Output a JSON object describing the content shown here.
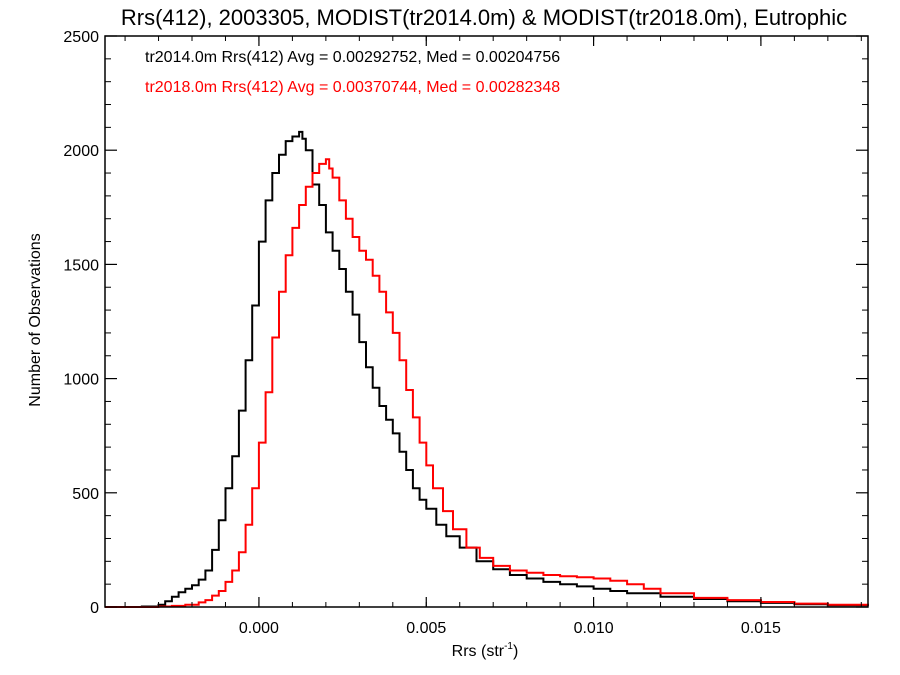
{
  "chart_data": {
    "type": "line",
    "style": "step-histogram",
    "title": "Rrs(412), 2003305, MODIST(tr2014.0m) & MODIST(tr2018.0m), Eutrophic",
    "xlabel_main": "Rrs (str",
    "xlabel_sup": "-1",
    "xlabel_close": ")",
    "ylabel": "Number of Observations",
    "xlim": [
      -0.0046,
      0.0182
    ],
    "ylim": [
      0,
      2500
    ],
    "xticks": [
      0.0,
      0.005,
      0.01,
      0.015
    ],
    "xtick_labels": [
      "0.000",
      "0.005",
      "0.010",
      "0.015"
    ],
    "yticks": [
      0,
      500,
      1000,
      1500,
      2000,
      2500
    ],
    "ytick_labels": [
      "0",
      "500",
      "1000",
      "1500",
      "2000",
      "2500"
    ],
    "grid": false,
    "legend_position": "top-left",
    "legend": [
      "tr2014.0m Rrs(412) Avg = 0.00292752, Med = 0.00204756",
      "tr2018.0m Rrs(412) Avg = 0.00370744, Med = 0.00282348"
    ],
    "series": [
      {
        "color": "#000000",
        "x": [
          -0.0046,
          -0.004,
          -0.0035,
          -0.003,
          -0.0028,
          -0.0026,
          -0.0024,
          -0.0022,
          -0.002,
          -0.0018,
          -0.0016,
          -0.0014,
          -0.0012,
          -0.001,
          -0.0008,
          -0.0006,
          -0.0004,
          -0.0002,
          0.0,
          0.0002,
          0.0004,
          0.0006,
          0.0008,
          0.001,
          0.0012,
          0.0013,
          0.0014,
          0.0016,
          0.0018,
          0.002,
          0.0022,
          0.0024,
          0.0026,
          0.0028,
          0.003,
          0.0032,
          0.0034,
          0.0036,
          0.0038,
          0.004,
          0.0042,
          0.0044,
          0.0046,
          0.0048,
          0.005,
          0.0053,
          0.0056,
          0.006,
          0.0065,
          0.007,
          0.0075,
          0.008,
          0.0085,
          0.009,
          0.0095,
          0.01,
          0.0105,
          0.011,
          0.012,
          0.013,
          0.014,
          0.015,
          0.016,
          0.017,
          0.0182
        ],
        "y": [
          0,
          0,
          2,
          10,
          25,
          45,
          65,
          80,
          95,
          120,
          160,
          250,
          380,
          520,
          660,
          860,
          1080,
          1320,
          1600,
          1780,
          1900,
          1980,
          2040,
          2060,
          2080,
          2050,
          2000,
          1850,
          1760,
          1640,
          1560,
          1480,
          1380,
          1280,
          1160,
          1050,
          960,
          880,
          820,
          760,
          680,
          600,
          520,
          470,
          430,
          360,
          310,
          260,
          200,
          165,
          140,
          125,
          110,
          100,
          90,
          80,
          70,
          60,
          45,
          35,
          25,
          18,
          12,
          8,
          5
        ]
      },
      {
        "color": "#ff0000",
        "x": [
          -0.0046,
          -0.0035,
          -0.003,
          -0.0026,
          -0.0022,
          -0.0018,
          -0.0016,
          -0.0014,
          -0.0012,
          -0.001,
          -0.0008,
          -0.0006,
          -0.0004,
          -0.0002,
          0.0,
          0.0002,
          0.0004,
          0.0006,
          0.0008,
          0.001,
          0.0012,
          0.0014,
          0.0016,
          0.0018,
          0.002,
          0.0021,
          0.0022,
          0.0024,
          0.0026,
          0.0028,
          0.003,
          0.0032,
          0.0034,
          0.0036,
          0.0038,
          0.004,
          0.0042,
          0.0044,
          0.0046,
          0.0048,
          0.005,
          0.0052,
          0.0055,
          0.0058,
          0.0062,
          0.0066,
          0.007,
          0.0075,
          0.008,
          0.0085,
          0.009,
          0.0095,
          0.01,
          0.0105,
          0.011,
          0.0115,
          0.012,
          0.013,
          0.014,
          0.015,
          0.016,
          0.017,
          0.0182
        ],
        "y": [
          0,
          0,
          2,
          5,
          10,
          20,
          30,
          50,
          70,
          110,
          160,
          240,
          360,
          520,
          720,
          940,
          1180,
          1380,
          1540,
          1660,
          1760,
          1840,
          1900,
          1940,
          1960,
          1920,
          1880,
          1780,
          1700,
          1620,
          1560,
          1520,
          1450,
          1380,
          1290,
          1200,
          1080,
          950,
          830,
          720,
          620,
          520,
          420,
          340,
          260,
          215,
          180,
          160,
          150,
          140,
          135,
          130,
          125,
          115,
          100,
          80,
          60,
          40,
          30,
          22,
          15,
          10,
          6
        ]
      }
    ]
  }
}
